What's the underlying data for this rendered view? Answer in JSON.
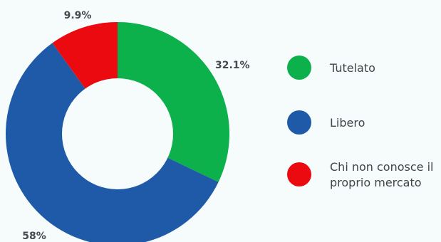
{
  "chart_data": {
    "type": "pie",
    "donut": true,
    "slices": [
      {
        "name": "Tutelato",
        "value": 32.1,
        "label": "32.1%",
        "color": "#0cb14b"
      },
      {
        "name": "Libero",
        "value": 58,
        "label": "58%",
        "color": "#1f5aa8"
      },
      {
        "name": "Chi non conosce il proprio mercato",
        "value": 9.9,
        "label": "9.9%",
        "color": "#ea0a10"
      }
    ],
    "legend": {
      "placement": "right",
      "items": [
        {
          "label_lines": [
            "Tutelato"
          ],
          "color": "#0cb14b"
        },
        {
          "label_lines": [
            "Libero"
          ],
          "color": "#1f5aa8"
        },
        {
          "label_lines": [
            "Chi non conosce il",
            "proprio mercato"
          ],
          "color": "#ea0a10"
        }
      ]
    }
  }
}
